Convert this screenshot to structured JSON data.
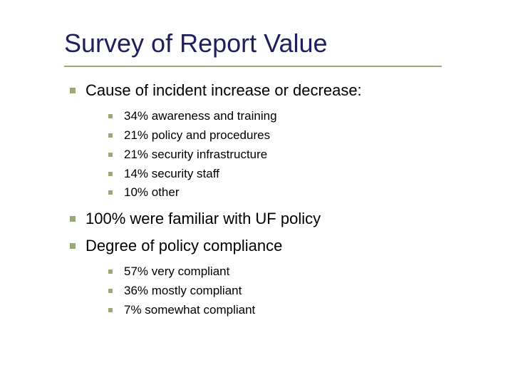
{
  "slide": {
    "title": "Survey of Report Value",
    "title_color": "#1f1f5c",
    "underline_color": "#99aa77",
    "bullet_color": "#99aa77",
    "background_color": "#ffffff",
    "text_color": "#000000",
    "title_fontsize": 36,
    "level1_fontsize": 22,
    "level2_fontsize": 17,
    "bullets": [
      {
        "text": "Cause of incident increase or decrease:",
        "sub": [
          "34% awareness and training",
          "21% policy and procedures",
          "21% security infrastructure",
          "14% security staff",
          "10% other"
        ]
      },
      {
        "text": "100% were familiar with UF policy",
        "sub": []
      },
      {
        "text": "Degree of policy compliance",
        "sub": [
          "57% very compliant",
          "36% mostly compliant",
          "7% somewhat compliant"
        ]
      }
    ]
  }
}
